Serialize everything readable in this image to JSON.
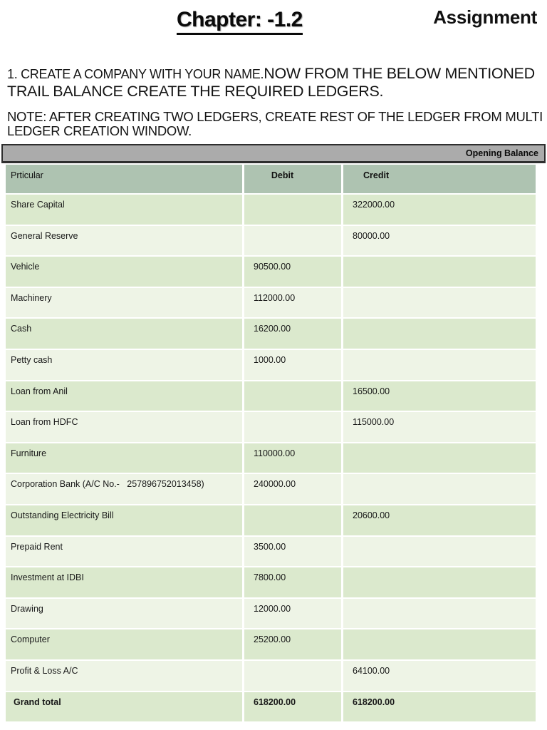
{
  "header": {
    "chapter_title": "Chapter: -1.2",
    "assignment_label": "Assignment"
  },
  "instructions": {
    "task_intro_small": "1. CREATE A COMPANY WITH YOUR NAME.",
    "task_intro_large": "NOW FROM THE BELOW MENTIONED TRAIL BALANCE CREATE THE REQUIRED LEDGERS.",
    "note": "NOTE: AFTER CREATING TWO LEDGERS, CREATE REST OF THE LEDGER FROM MULTI LEDGER CREATION WINDOW."
  },
  "table": {
    "banner": "Opening Balance",
    "columns": [
      "Prticular",
      "Debit",
      "Credit"
    ],
    "rows": [
      {
        "particular": "Share Capital",
        "debit": "",
        "credit": "322000.00"
      },
      {
        "particular": "General Reserve",
        "debit": "",
        "credit": "80000.00"
      },
      {
        "particular": "Vehicle",
        "debit": "90500.00",
        "credit": ""
      },
      {
        "particular": "Machinery",
        "debit": "112000.00",
        "credit": ""
      },
      {
        "particular": "Cash",
        "debit": "16200.00",
        "credit": ""
      },
      {
        "particular": "Petty cash",
        "debit": "1000.00",
        "credit": ""
      },
      {
        "particular": "Loan from Anil",
        "debit": "",
        "credit": "16500.00"
      },
      {
        "particular": "Loan from HDFC",
        "debit": "",
        "credit": "115000.00"
      },
      {
        "particular": "Furniture",
        "debit": "110000.00",
        "credit": ""
      },
      {
        "particular": "Corporation Bank (A/C No.-   257896752013458)",
        "debit": "240000.00",
        "credit": ""
      },
      {
        "particular": "Outstanding Electricity Bill",
        "debit": "",
        "credit": "20600.00"
      },
      {
        "particular": "Prepaid Rent",
        "debit": "3500.00",
        "credit": ""
      },
      {
        "particular": "Investment at IDBI",
        "debit": "7800.00",
        "credit": ""
      },
      {
        "particular": "Drawing",
        "debit": "12000.00",
        "credit": ""
      },
      {
        "particular": "Computer",
        "debit": "25200.00",
        "credit": ""
      },
      {
        "particular": "Profit & Loss A/C",
        "debit": "",
        "credit": "64100.00"
      },
      {
        "particular": "Grand total",
        "debit": "618200.00",
        "credit": "618200.00",
        "is_total": true
      }
    ]
  },
  "colors": {
    "banner_bg": "#ababab",
    "header_row_bg": "#aec3b1",
    "row_dark_bg": "#dbe9cd",
    "row_light_bg": "#eef4e6"
  }
}
